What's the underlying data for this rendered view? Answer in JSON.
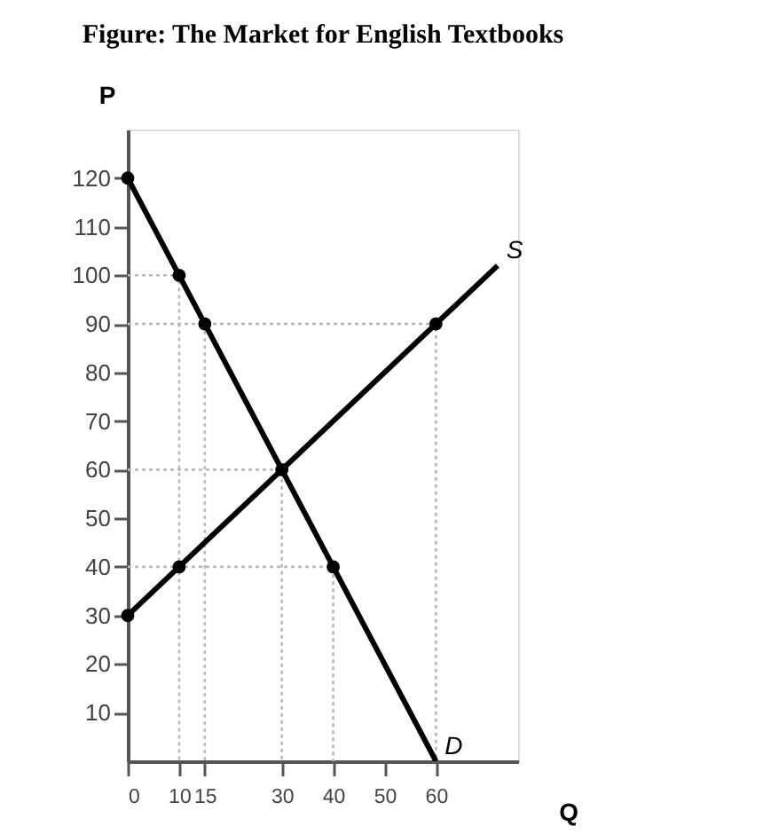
{
  "chart_data": {
    "type": "line",
    "title": "Figure: The Market for English Textbooks",
    "xlabel": "Q",
    "ylabel": "P",
    "xlim": [
      0,
      76
    ],
    "ylim": [
      0,
      130
    ],
    "xticks": [
      0,
      10,
      15,
      30,
      40,
      50,
      60
    ],
    "yticks": [
      10,
      20,
      30,
      40,
      50,
      60,
      70,
      80,
      90,
      100,
      110,
      120
    ],
    "grid": false,
    "legend": false,
    "marker": "none",
    "series": [
      {
        "type": "line",
        "line_style": "dotted",
        "color": "#bbbbbb",
        "x": [
          0,
          10,
          10
        ],
        "values": [
          100,
          100,
          0
        ]
      },
      {
        "type": "line",
        "line_style": "dotted",
        "color": "#bbbbbb",
        "x": [
          0,
          60,
          60
        ],
        "values": [
          90,
          90,
          0
        ]
      },
      {
        "type": "line",
        "line_style": "dotted",
        "color": "#bbbbbb",
        "x": [
          15,
          15
        ],
        "values": [
          90,
          0
        ]
      },
      {
        "type": "line",
        "line_style": "dotted",
        "color": "#bbbbbb",
        "x": [
          0,
          30,
          30
        ],
        "values": [
          60,
          60,
          0
        ]
      },
      {
        "type": "line",
        "line_style": "dotted",
        "color": "#bbbbbb",
        "x": [
          0,
          40,
          40
        ],
        "values": [
          40,
          40,
          0
        ]
      },
      {
        "type": "line",
        "name": "D",
        "line_style": "solid",
        "color": "#000000",
        "x": [
          0,
          60
        ],
        "values": [
          120,
          0
        ]
      },
      {
        "type": "line",
        "name": "S",
        "line_style": "solid",
        "color": "#000000",
        "x": [
          0,
          72
        ],
        "values": [
          30,
          102
        ]
      },
      {
        "type": "scatter",
        "marker": "circle",
        "color": "#000000",
        "x": [
          0,
          10,
          15,
          30,
          40
        ],
        "values": [
          120,
          100,
          90,
          60,
          40
        ]
      },
      {
        "type": "scatter",
        "marker": "circle",
        "color": "#000000",
        "x": [
          0,
          10,
          60
        ],
        "values": [
          30,
          40,
          90
        ]
      }
    ]
  }
}
